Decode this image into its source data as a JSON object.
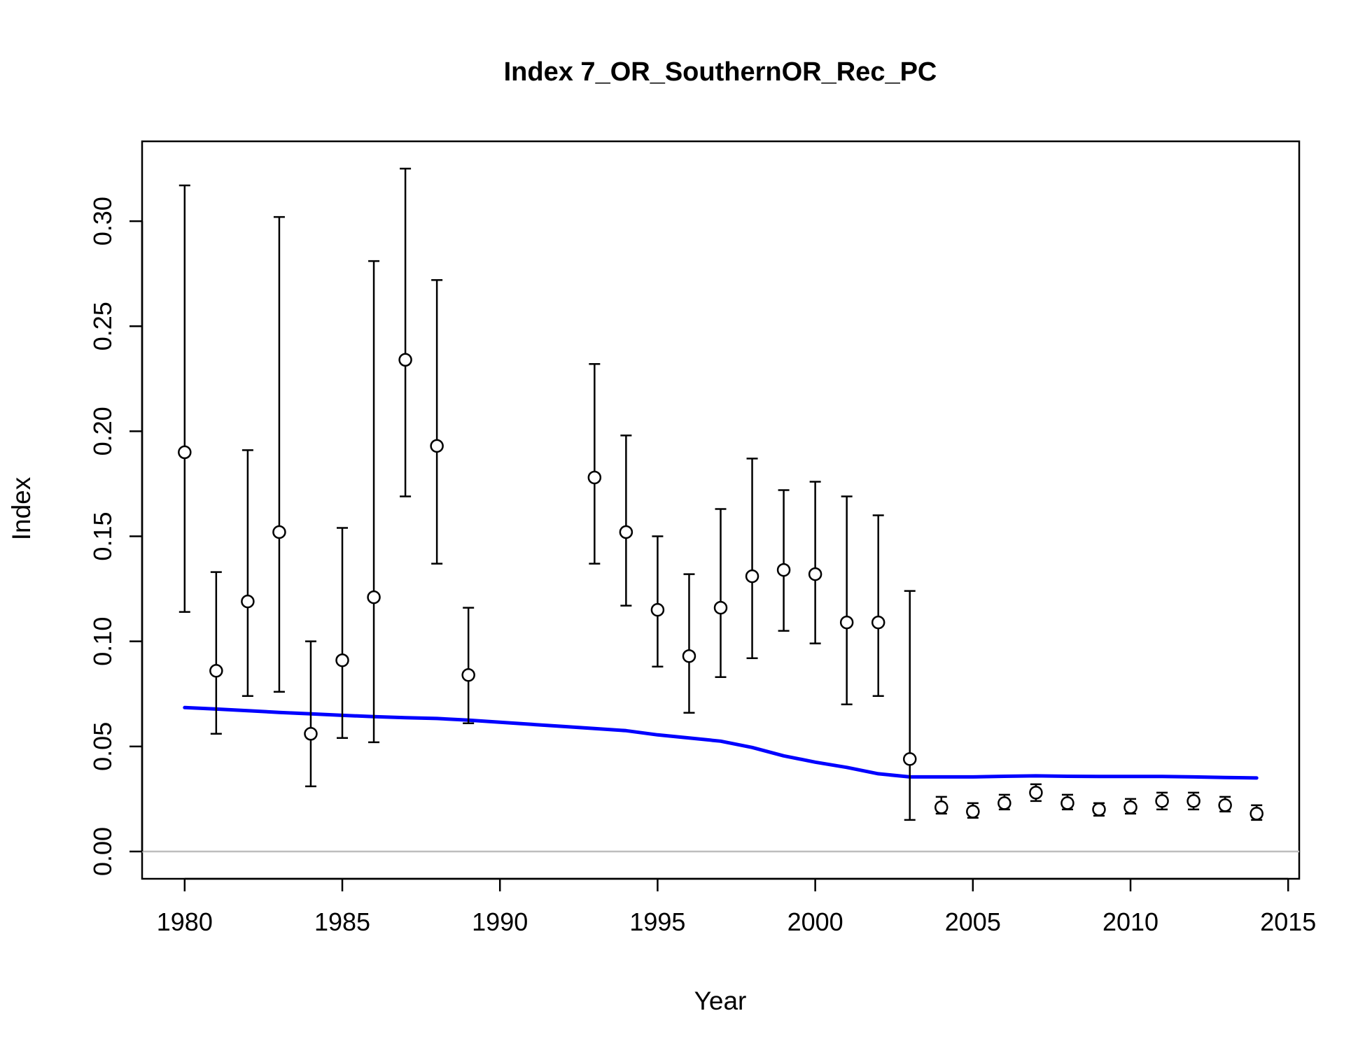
{
  "chart_data": {
    "type": "scatter",
    "title": "Index 7_OR_SouthernOR_Rec_PC",
    "xlabel": "Year",
    "ylabel": "Index",
    "xlim": [
      1978.65,
      2015.35
    ],
    "ylim": [
      -0.013,
      0.338
    ],
    "x_ticks": [
      1980,
      1985,
      1990,
      1995,
      2000,
      2005,
      2010,
      2015
    ],
    "x_tick_labels": [
      "1980",
      "1985",
      "1990",
      "1995",
      "2000",
      "2005",
      "2010",
      "2015"
    ],
    "y_ticks": [
      0,
      0.05,
      0.1,
      0.15,
      0.2,
      0.25,
      0.3
    ],
    "y_tick_labels": [
      "0.00",
      "0.05",
      "0.10",
      "0.15",
      "0.20",
      "0.25",
      "0.30"
    ],
    "reference_line_y": 0,
    "grid": false,
    "colors": {
      "observed": "#000000",
      "expected": "#0000ff",
      "reference": "#bebebe"
    },
    "observed": {
      "x": [
        1980,
        1981,
        1982,
        1983,
        1984,
        1985,
        1986,
        1987,
        1988,
        1989,
        1993,
        1994,
        1995,
        1996,
        1997,
        1998,
        1999,
        2000,
        2001,
        2002,
        2003,
        2004,
        2005,
        2006,
        2007,
        2008,
        2009,
        2010,
        2011,
        2012,
        2013,
        2014
      ],
      "y": [
        0.19,
        0.086,
        0.119,
        0.152,
        0.056,
        0.091,
        0.121,
        0.234,
        0.193,
        0.084,
        0.178,
        0.152,
        0.115,
        0.093,
        0.116,
        0.131,
        0.134,
        0.132,
        0.109,
        0.109,
        0.044,
        0.021,
        0.019,
        0.023,
        0.028,
        0.023,
        0.02,
        0.021,
        0.024,
        0.024,
        0.022,
        0.018
      ],
      "lower": [
        0.114,
        0.056,
        0.074,
        0.076,
        0.031,
        0.054,
        0.052,
        0.169,
        0.137,
        0.061,
        0.137,
        0.117,
        0.088,
        0.066,
        0.083,
        0.092,
        0.105,
        0.099,
        0.07,
        0.074,
        0.015,
        0.018,
        0.016,
        0.02,
        0.024,
        0.02,
        0.017,
        0.018,
        0.02,
        0.02,
        0.019,
        0.015
      ],
      "upper": [
        0.317,
        0.133,
        0.191,
        0.302,
        0.1,
        0.154,
        0.281,
        0.325,
        0.272,
        0.116,
        0.232,
        0.198,
        0.15,
        0.132,
        0.163,
        0.187,
        0.172,
        0.176,
        0.169,
        0.16,
        0.124,
        0.026,
        0.023,
        0.027,
        0.032,
        0.027,
        0.023,
        0.025,
        0.028,
        0.028,
        0.026,
        0.022
      ]
    },
    "expected": {
      "x": [
        1980,
        1981,
        1982,
        1983,
        1984,
        1985,
        1986,
        1987,
        1988,
        1989,
        1990,
        1991,
        1992,
        1993,
        1994,
        1995,
        1996,
        1997,
        1998,
        1999,
        2000,
        2001,
        2002,
        2003,
        2004,
        2005,
        2006,
        2007,
        2008,
        2009,
        2010,
        2011,
        2012,
        2013,
        2014
      ],
      "y": [
        0.0685,
        0.0678,
        0.067,
        0.0662,
        0.0655,
        0.0648,
        0.0642,
        0.0637,
        0.0633,
        0.0625,
        0.0615,
        0.0605,
        0.0595,
        0.0585,
        0.0575,
        0.0555,
        0.054,
        0.0525,
        0.0495,
        0.0455,
        0.0425,
        0.04,
        0.037,
        0.0355,
        0.0355,
        0.0355,
        0.0358,
        0.036,
        0.0358,
        0.0357,
        0.0357,
        0.0357,
        0.0355,
        0.0352,
        0.035
      ]
    }
  }
}
